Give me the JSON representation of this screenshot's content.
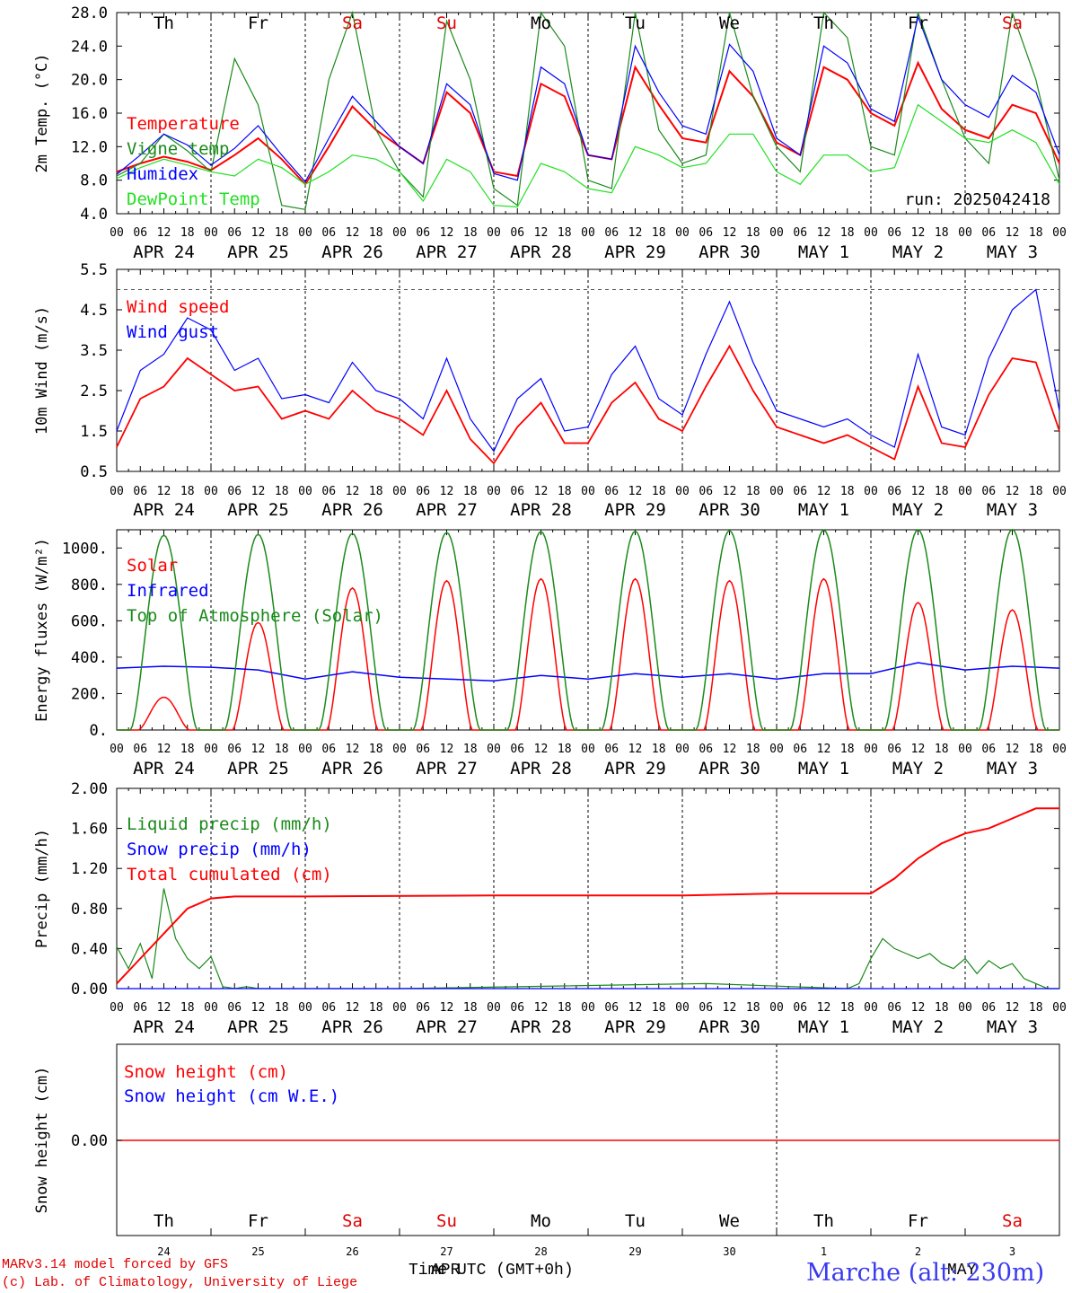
{
  "chart_data": [
    {
      "type": "line",
      "ylabel": "2m Temp. (°C)",
      "ylim": [
        4.0,
        28.0
      ],
      "yticks": [
        "4.0",
        "8.0",
        "12.0",
        "16.0",
        "20.0",
        "24.0",
        "28.0"
      ],
      "run_label": "run: 2025042418",
      "series": [
        {
          "name": "Temperature",
          "color": "#ff0000",
          "x": [
            0,
            6,
            12,
            18,
            24,
            30,
            36,
            42,
            48,
            54,
            60,
            66,
            72,
            78,
            84,
            90,
            96,
            102,
            108,
            114,
            120,
            126,
            132,
            138,
            144,
            150,
            156,
            162,
            168,
            174,
            180,
            186,
            192,
            198,
            204,
            210,
            216,
            222,
            228,
            234,
            240
          ],
          "values": [
            9.0,
            10.0,
            10.8,
            10.2,
            9.2,
            11.0,
            13.0,
            10.5,
            7.5,
            12.0,
            16.8,
            14.0,
            12.0,
            10.0,
            18.5,
            16.0,
            9.0,
            8.5,
            19.5,
            18.0,
            11.0,
            10.5,
            21.5,
            17.0,
            13.0,
            12.5,
            21.0,
            18.0,
            12.5,
            11.0,
            21.5,
            20.0,
            16.0,
            14.5,
            22.0,
            16.5,
            14.0,
            13.0,
            17.0,
            16.0,
            10.0
          ]
        },
        {
          "name": "Vigne temp",
          "color": "#1a8a1a",
          "x": [
            0,
            6,
            12,
            18,
            24,
            30,
            36,
            42,
            48,
            54,
            60,
            66,
            72,
            78,
            84,
            90,
            96,
            102,
            108,
            114,
            120,
            126,
            132,
            138,
            144,
            150,
            156,
            162,
            168,
            174,
            180,
            186,
            192,
            198,
            204,
            210,
            216,
            222,
            228,
            234,
            240
          ],
          "values": [
            8.5,
            10.0,
            13.5,
            11.5,
            9.0,
            22.5,
            17.0,
            5.0,
            4.5,
            20.0,
            28.0,
            14.0,
            9.0,
            6.0,
            27.0,
            20.0,
            7.0,
            5.0,
            29.0,
            24.0,
            8.0,
            7.0,
            30.0,
            14.0,
            10.0,
            11.0,
            31.0,
            18.0,
            12.0,
            9.0,
            30.0,
            25.0,
            12.0,
            11.0,
            30.0,
            20.0,
            13.0,
            10.0,
            28.0,
            20.0,
            8.0
          ]
        },
        {
          "name": "Humidex",
          "color": "#0000ff",
          "x": [
            0,
            6,
            12,
            18,
            24,
            30,
            36,
            42,
            48,
            54,
            60,
            66,
            72,
            78,
            84,
            90,
            96,
            102,
            108,
            114,
            120,
            126,
            132,
            138,
            144,
            150,
            156,
            162,
            168,
            174,
            180,
            186,
            192,
            198,
            204,
            210,
            216,
            222,
            228,
            234,
            240
          ],
          "values": [
            8.7,
            11.0,
            13.5,
            12.2,
            9.8,
            11.8,
            14.5,
            11.0,
            7.8,
            13.0,
            18.0,
            15.0,
            12.0,
            10.0,
            19.5,
            17.0,
            8.8,
            8.0,
            21.5,
            19.5,
            11.0,
            10.5,
            24.0,
            18.5,
            14.5,
            13.5,
            24.2,
            21.0,
            13.0,
            11.0,
            24.0,
            22.0,
            16.5,
            15.0,
            27.5,
            20.0,
            17.0,
            15.5,
            20.5,
            18.5,
            11.0
          ]
        },
        {
          "name": "DewPoint Temp",
          "color": "#22e022",
          "x": [
            0,
            6,
            12,
            18,
            24,
            30,
            36,
            42,
            48,
            54,
            60,
            66,
            72,
            78,
            84,
            90,
            96,
            102,
            108,
            114,
            120,
            126,
            132,
            138,
            144,
            150,
            156,
            162,
            168,
            174,
            180,
            186,
            192,
            198,
            204,
            210,
            216,
            222,
            228,
            234,
            240
          ],
          "values": [
            8.2,
            9.5,
            10.5,
            9.8,
            9.0,
            8.5,
            10.5,
            9.5,
            7.5,
            9.0,
            11.0,
            10.5,
            9.0,
            5.5,
            10.5,
            9.0,
            5.0,
            4.8,
            10.0,
            9.0,
            7.0,
            6.5,
            12.0,
            11.0,
            9.5,
            10.0,
            13.5,
            13.5,
            9.0,
            7.5,
            11.0,
            11.0,
            9.0,
            9.5,
            17.0,
            15.0,
            13.0,
            12.5,
            14.0,
            12.5,
            7.5
          ]
        }
      ]
    },
    {
      "type": "line",
      "ylabel": "10m Wind (m/s)",
      "ylim": [
        0.5,
        5.5
      ],
      "yticks": [
        "0.5",
        "1.5",
        "2.5",
        "3.5",
        "4.5",
        "5.5"
      ],
      "reference_line": 5.0,
      "series": [
        {
          "name": "Wind speed",
          "color": "#ff0000",
          "x": [
            0,
            6,
            12,
            18,
            24,
            30,
            36,
            42,
            48,
            54,
            60,
            66,
            72,
            78,
            84,
            90,
            96,
            102,
            108,
            114,
            120,
            126,
            132,
            138,
            144,
            150,
            156,
            162,
            168,
            174,
            180,
            186,
            192,
            198,
            204,
            210,
            216,
            222,
            228,
            234,
            240
          ],
          "values": [
            1.1,
            2.3,
            2.6,
            3.3,
            2.9,
            2.5,
            2.6,
            1.8,
            2.0,
            1.8,
            2.5,
            2.0,
            1.8,
            1.4,
            2.5,
            1.3,
            0.7,
            1.6,
            2.2,
            1.2,
            1.2,
            2.2,
            2.7,
            1.8,
            1.5,
            2.6,
            3.6,
            2.5,
            1.6,
            1.4,
            1.2,
            1.4,
            1.1,
            0.8,
            2.6,
            1.2,
            1.1,
            2.4,
            3.3,
            3.2,
            1.5
          ]
        },
        {
          "name": "Wind gust",
          "color": "#0000ff",
          "x": [
            0,
            6,
            12,
            18,
            24,
            30,
            36,
            42,
            48,
            54,
            60,
            66,
            72,
            78,
            84,
            90,
            96,
            102,
            108,
            114,
            120,
            126,
            132,
            138,
            144,
            150,
            156,
            162,
            168,
            174,
            180,
            186,
            192,
            198,
            204,
            210,
            216,
            222,
            228,
            234,
            240
          ],
          "values": [
            1.5,
            3.0,
            3.4,
            4.3,
            4.0,
            3.0,
            3.3,
            2.3,
            2.4,
            2.2,
            3.2,
            2.5,
            2.3,
            1.8,
            3.3,
            1.8,
            1.0,
            2.3,
            2.8,
            1.5,
            1.6,
            2.9,
            3.6,
            2.3,
            1.9,
            3.4,
            4.7,
            3.2,
            2.0,
            1.8,
            1.6,
            1.8,
            1.4,
            1.1,
            3.4,
            1.6,
            1.4,
            3.3,
            4.5,
            5.0,
            2.0
          ]
        }
      ]
    },
    {
      "type": "line",
      "ylabel": "Energy fluxes (W/m²)",
      "ylim": [
        0,
        1100
      ],
      "yticks": [
        "0.",
        "200.",
        "400.",
        "600.",
        "800.",
        "1000."
      ],
      "series": [
        {
          "name": "Solar",
          "color": "#ff0000",
          "peaks": [
            180,
            590,
            780,
            820,
            830,
            830,
            820,
            830,
            700,
            660
          ]
        },
        {
          "name": "Infrared",
          "color": "#0000ff",
          "x": [
            0,
            12,
            24,
            36,
            48,
            60,
            72,
            84,
            96,
            108,
            120,
            132,
            144,
            156,
            168,
            180,
            192,
            204,
            216,
            228,
            240
          ],
          "values": [
            340,
            350,
            345,
            330,
            280,
            320,
            290,
            280,
            270,
            300,
            280,
            310,
            290,
            310,
            280,
            310,
            310,
            370,
            330,
            350,
            340
          ]
        },
        {
          "name": "Top of Atmosphere (Solar)",
          "color": "#1a8a1a",
          "peaks": [
            1070,
            1075,
            1080,
            1085,
            1090,
            1092,
            1095,
            1098,
            1100,
            1102
          ]
        }
      ]
    },
    {
      "type": "line",
      "ylabel": "Precip (mm/h)",
      "ylim": [
        0,
        2.0
      ],
      "yticks": [
        "0.00",
        "0.40",
        "0.80",
        "1.20",
        "1.60",
        "2.00"
      ],
      "series": [
        {
          "name": "Liquid precip (mm/h)",
          "color": "#1a8a1a",
          "x": [
            0,
            3,
            6,
            9,
            12,
            15,
            18,
            21,
            24,
            27,
            30,
            33,
            36,
            72,
            150,
            186,
            189,
            192,
            195,
            198,
            201,
            204,
            207,
            210,
            213,
            216,
            219,
            222,
            225,
            228,
            231,
            234,
            237,
            240
          ],
          "values": [
            0.42,
            0.2,
            0.45,
            0.1,
            1.0,
            0.5,
            0.3,
            0.2,
            0.32,
            0.02,
            0.0,
            0.02,
            0.0,
            0.0,
            0.05,
            0.0,
            0.05,
            0.3,
            0.5,
            0.4,
            0.35,
            0.3,
            0.35,
            0.25,
            0.2,
            0.3,
            0.15,
            0.28,
            0.2,
            0.25,
            0.1,
            0.05,
            0.0,
            0.0
          ]
        },
        {
          "name": "Snow precip (mm/h)",
          "color": "#0000ff",
          "x": [
            0,
            240
          ],
          "values": [
            0,
            0
          ]
        },
        {
          "name": "Total cumulated (cm)",
          "color": "#ff0000",
          "x": [
            0,
            6,
            12,
            18,
            24,
            30,
            48,
            96,
            144,
            168,
            192,
            198,
            204,
            210,
            216,
            222,
            228,
            234,
            240
          ],
          "values": [
            0.05,
            0.3,
            0.55,
            0.8,
            0.9,
            0.92,
            0.92,
            0.93,
            0.93,
            0.95,
            0.95,
            1.1,
            1.3,
            1.45,
            1.55,
            1.6,
            1.7,
            1.8,
            1.8
          ]
        }
      ]
    },
    {
      "type": "line",
      "ylabel": "Snow height (cm)",
      "yticks": [
        "0.00"
      ],
      "series": [
        {
          "name": "Snow height (cm)",
          "color": "#ff0000",
          "x": [
            0,
            240
          ],
          "values": [
            0,
            0
          ]
        },
        {
          "name": "Snow height (cm W.E.)",
          "color": "#0000ff",
          "x": [
            0,
            240
          ],
          "values": [
            0,
            0
          ]
        }
      ]
    }
  ],
  "days": [
    "Th",
    "Fr",
    "Sa",
    "Su",
    "Mo",
    "Tu",
    "We",
    "Th",
    "Fr",
    "Sa"
  ],
  "weekend_color": "#e00000",
  "date_labels": [
    "APR 24",
    "APR 25",
    "APR 26",
    "APR 27",
    "APR 28",
    "APR 29",
    "APR 30",
    "MAY  1",
    "MAY  2",
    "MAY  3"
  ],
  "hour_ticks": [
    "00",
    "06",
    "12",
    "18"
  ],
  "bottom_day_numbers": [
    "24",
    "25",
    "26",
    "27",
    "28",
    "29",
    "30",
    "1",
    "2",
    "3"
  ],
  "footer": {
    "credit1": "MARv3.14 model forced by GFS",
    "credit2": "(c) Lab. of Climatology, University of Liege",
    "xtitle": "Time UTC (GMT+0h)",
    "overlap": "APR",
    "place": "Marche (alt: 230m)",
    "may": "MAY"
  }
}
